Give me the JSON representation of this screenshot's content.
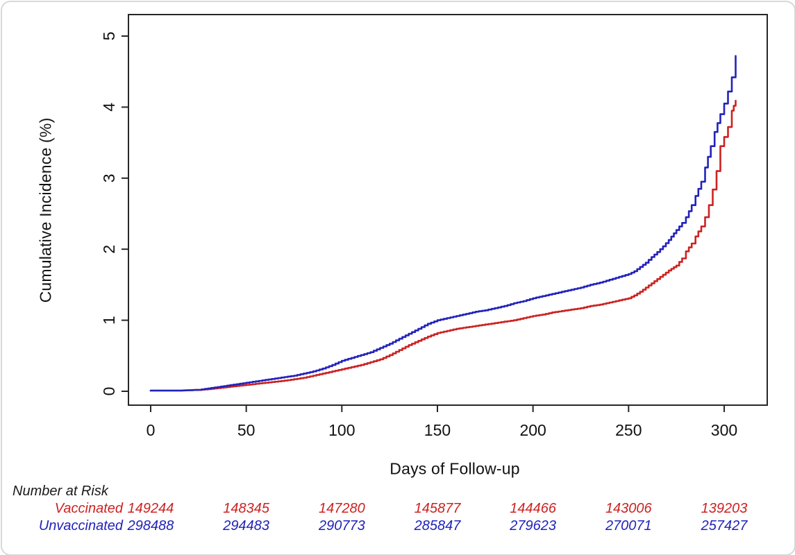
{
  "accent_colors": {
    "vaccinated_red": "#cc2222",
    "unvaccinated_blue": "#2222bb",
    "axis_color": "#262626",
    "frame_border": "#d8d8dc"
  },
  "chart_data": {
    "type": "line",
    "subtype": "kaplan-meier-step",
    "title": "",
    "xlabel": "Days of Follow-up",
    "ylabel": "Cumulative Incidence (%)",
    "xlim": [
      0,
      310
    ],
    "ylim": [
      0,
      5
    ],
    "x_ticks": [
      0,
      50,
      100,
      150,
      200,
      250,
      300
    ],
    "y_ticks": [
      0,
      1,
      2,
      3,
      4,
      5
    ],
    "grid": false,
    "legend_position": "none",
    "series": [
      {
        "name": "Vaccinated",
        "color": "#cc2222",
        "points": [
          [
            0,
            0.01
          ],
          [
            15,
            0.01
          ],
          [
            25,
            0.02
          ],
          [
            30,
            0.03
          ],
          [
            35,
            0.045
          ],
          [
            40,
            0.06
          ],
          [
            45,
            0.075
          ],
          [
            50,
            0.09
          ],
          [
            55,
            0.105
          ],
          [
            60,
            0.12
          ],
          [
            65,
            0.135
          ],
          [
            70,
            0.15
          ],
          [
            75,
            0.17
          ],
          [
            80,
            0.19
          ],
          [
            85,
            0.22
          ],
          [
            90,
            0.25
          ],
          [
            95,
            0.28
          ],
          [
            100,
            0.31
          ],
          [
            105,
            0.34
          ],
          [
            110,
            0.37
          ],
          [
            115,
            0.41
          ],
          [
            120,
            0.45
          ],
          [
            125,
            0.51
          ],
          [
            130,
            0.58
          ],
          [
            135,
            0.65
          ],
          [
            140,
            0.71
          ],
          [
            145,
            0.77
          ],
          [
            150,
            0.82
          ],
          [
            155,
            0.85
          ],
          [
            160,
            0.88
          ],
          [
            165,
            0.9
          ],
          [
            170,
            0.92
          ],
          [
            175,
            0.94
          ],
          [
            180,
            0.96
          ],
          [
            185,
            0.98
          ],
          [
            190,
            1.0
          ],
          [
            195,
            1.03
          ],
          [
            200,
            1.06
          ],
          [
            205,
            1.08
          ],
          [
            210,
            1.11
          ],
          [
            215,
            1.13
          ],
          [
            220,
            1.15
          ],
          [
            225,
            1.17
          ],
          [
            230,
            1.2
          ],
          [
            235,
            1.22
          ],
          [
            240,
            1.25
          ],
          [
            245,
            1.28
          ],
          [
            250,
            1.31
          ],
          [
            253,
            1.35
          ],
          [
            256,
            1.4
          ],
          [
            259,
            1.46
          ],
          [
            262,
            1.52
          ],
          [
            265,
            1.58
          ],
          [
            268,
            1.64
          ],
          [
            271,
            1.7
          ],
          [
            275,
            1.77
          ],
          [
            278,
            1.87
          ],
          [
            280,
            1.97
          ],
          [
            283,
            2.08
          ],
          [
            285,
            2.18
          ],
          [
            288,
            2.32
          ],
          [
            290,
            2.45
          ],
          [
            292,
            2.62
          ],
          [
            294,
            2.84
          ],
          [
            296,
            3.1
          ],
          [
            298,
            3.45
          ],
          [
            300,
            3.58
          ],
          [
            302,
            3.72
          ],
          [
            304,
            3.95
          ],
          [
            305,
            4.02
          ],
          [
            306,
            4.09
          ]
        ]
      },
      {
        "name": "Unvaccinated",
        "color": "#2222bb",
        "points": [
          [
            0,
            0.01
          ],
          [
            15,
            0.01
          ],
          [
            25,
            0.02
          ],
          [
            30,
            0.04
          ],
          [
            35,
            0.06
          ],
          [
            40,
            0.08
          ],
          [
            45,
            0.1
          ],
          [
            50,
            0.12
          ],
          [
            55,
            0.14
          ],
          [
            60,
            0.16
          ],
          [
            65,
            0.18
          ],
          [
            70,
            0.2
          ],
          [
            75,
            0.22
          ],
          [
            80,
            0.25
          ],
          [
            85,
            0.28
          ],
          [
            90,
            0.32
          ],
          [
            95,
            0.37
          ],
          [
            100,
            0.43
          ],
          [
            105,
            0.47
          ],
          [
            110,
            0.51
          ],
          [
            115,
            0.55
          ],
          [
            120,
            0.61
          ],
          [
            125,
            0.67
          ],
          [
            130,
            0.74
          ],
          [
            135,
            0.81
          ],
          [
            140,
            0.88
          ],
          [
            145,
            0.95
          ],
          [
            150,
            1.0
          ],
          [
            155,
            1.03
          ],
          [
            160,
            1.06
          ],
          [
            165,
            1.09
          ],
          [
            170,
            1.12
          ],
          [
            175,
            1.14
          ],
          [
            180,
            1.17
          ],
          [
            185,
            1.2
          ],
          [
            190,
            1.24
          ],
          [
            195,
            1.27
          ],
          [
            200,
            1.31
          ],
          [
            205,
            1.34
          ],
          [
            210,
            1.37
          ],
          [
            215,
            1.4
          ],
          [
            220,
            1.43
          ],
          [
            225,
            1.46
          ],
          [
            230,
            1.5
          ],
          [
            235,
            1.53
          ],
          [
            240,
            1.57
          ],
          [
            245,
            1.61
          ],
          [
            250,
            1.65
          ],
          [
            253,
            1.69
          ],
          [
            256,
            1.75
          ],
          [
            259,
            1.81
          ],
          [
            262,
            1.89
          ],
          [
            265,
            1.96
          ],
          [
            268,
            2.04
          ],
          [
            271,
            2.13
          ],
          [
            275,
            2.27
          ],
          [
            278,
            2.37
          ],
          [
            280,
            2.45
          ],
          [
            283,
            2.62
          ],
          [
            285,
            2.75
          ],
          [
            288,
            2.95
          ],
          [
            290,
            3.15
          ],
          [
            293,
            3.45
          ],
          [
            295,
            3.65
          ],
          [
            298,
            3.9
          ],
          [
            300,
            4.05
          ],
          [
            302,
            4.22
          ],
          [
            304,
            4.42
          ],
          [
            306,
            4.72
          ]
        ]
      }
    ],
    "number_at_risk": {
      "title": "Number at Risk",
      "days": [
        0,
        50,
        100,
        150,
        200,
        250,
        300
      ],
      "rows": [
        {
          "label": "Vaccinated",
          "color": "#cc2222",
          "values": [
            "149244",
            "148345",
            "147280",
            "145877",
            "144466",
            "143006",
            "139203"
          ]
        },
        {
          "label": "Unvaccinated",
          "color": "#2222bb",
          "values": [
            "298488",
            "294483",
            "290773",
            "285847",
            "279623",
            "270071",
            "257427"
          ]
        }
      ]
    }
  }
}
